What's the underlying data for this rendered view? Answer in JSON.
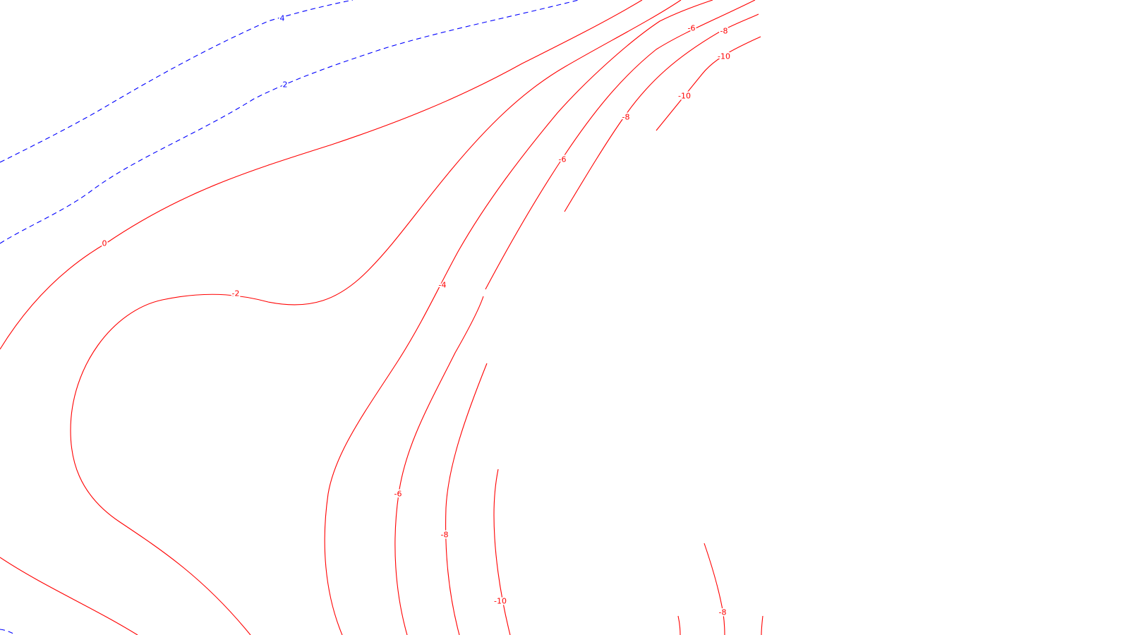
{
  "map": {
    "background": "#ffffff",
    "negative_color": "#ff0000",
    "positive_color": "#0000ff",
    "contour_labels": [
      {
        "id": "lbl-pos4-top",
        "text": "4",
        "sign": "pos"
      },
      {
        "id": "lbl-pos2-top",
        "text": "2",
        "sign": "pos"
      },
      {
        "id": "lbl-zero",
        "text": "0",
        "sign": "neg"
      },
      {
        "id": "lbl-m2",
        "text": "-2",
        "sign": "neg"
      },
      {
        "id": "lbl-m4",
        "text": "-4",
        "sign": "neg"
      },
      {
        "id": "lbl-m6-top",
        "text": "-6",
        "sign": "neg"
      },
      {
        "id": "lbl-m6-mid",
        "text": "-6",
        "sign": "neg"
      },
      {
        "id": "lbl-m6-bot",
        "text": "-6",
        "sign": "neg"
      },
      {
        "id": "lbl-m8-top",
        "text": "-8",
        "sign": "neg"
      },
      {
        "id": "lbl-m8-mid",
        "text": "-8",
        "sign": "neg"
      },
      {
        "id": "lbl-m8-bot",
        "text": "-8",
        "sign": "neg"
      },
      {
        "id": "lbl-m8-right",
        "text": "-8",
        "sign": "neg"
      },
      {
        "id": "lbl-m10-top",
        "text": "-10",
        "sign": "neg"
      },
      {
        "id": "lbl-m10-mid",
        "text": "-10",
        "sign": "neg"
      },
      {
        "id": "lbl-m10-bot",
        "text": "-10",
        "sign": "neg"
      }
    ]
  }
}
